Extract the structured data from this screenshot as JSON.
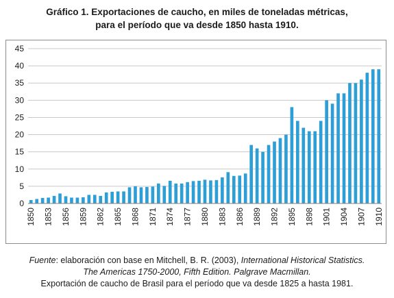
{
  "title": {
    "line1": "Gráfico 1. Exportaciones de caucho, en miles de toneladas métricas,",
    "line2": "para el período que va desde 1850  hasta 1910."
  },
  "source": {
    "line1_label": "Fuente",
    "line1_text": ": elaboración con base en  Mitchell, B. R. (2003), ",
    "line1_italic": "International Historical Statistics.",
    "line2": "The Americas 1750-2000, Fifth Edition. Palgrave Macmillan.",
    "line3": "Exportación de caucho de Brasil para el período que va desde 1825 a hasta 1981."
  },
  "chart_data": {
    "type": "bar",
    "color": "#2e9fd6",
    "ylim": [
      0,
      45
    ],
    "yticks": [
      0,
      5,
      10,
      15,
      20,
      25,
      30,
      35,
      40,
      45
    ],
    "xtick_labels": [
      "1850",
      "1853",
      "1856",
      "1859",
      "1862",
      "1865",
      "1868",
      "1871",
      "1874",
      "1877",
      "1880",
      "1883",
      "1886",
      "1889",
      "1892",
      "1895",
      "1898",
      "1901",
      "1904",
      "1907",
      "1910"
    ],
    "grid": true,
    "categories": [
      1850,
      1851,
      1852,
      1853,
      1854,
      1855,
      1856,
      1857,
      1858,
      1859,
      1860,
      1861,
      1862,
      1863,
      1864,
      1865,
      1866,
      1867,
      1868,
      1869,
      1870,
      1871,
      1872,
      1873,
      1874,
      1875,
      1876,
      1877,
      1878,
      1879,
      1880,
      1881,
      1882,
      1883,
      1884,
      1885,
      1886,
      1887,
      1888,
      1889,
      1890,
      1891,
      1892,
      1893,
      1894,
      1895,
      1896,
      1897,
      1898,
      1899,
      1900,
      1901,
      1902,
      1903,
      1904,
      1905,
      1906,
      1907,
      1908,
      1909,
      1910
    ],
    "values": [
      1.0,
      1.3,
      1.6,
      1.7,
      2.2,
      2.9,
      2.1,
      1.7,
      1.7,
      1.8,
      2.5,
      2.5,
      2.2,
      3.2,
      3.4,
      3.5,
      3.5,
      4.7,
      5.0,
      4.7,
      4.8,
      4.9,
      5.8,
      5.1,
      6.6,
      5.8,
      5.8,
      6.2,
      6.5,
      6.6,
      6.9,
      6.7,
      6.8,
      7.6,
      9.1,
      8.0,
      8.1,
      8.7,
      17.0,
      16.0,
      15.0,
      17.0,
      18.0,
      19.0,
      20.0,
      28.0,
      24.0,
      22.0,
      21.0,
      21.0,
      24.0,
      30.0,
      29.0,
      32.0,
      32.0,
      35.0,
      35.0,
      36.0,
      38.0,
      39.0,
      39.0
    ]
  }
}
